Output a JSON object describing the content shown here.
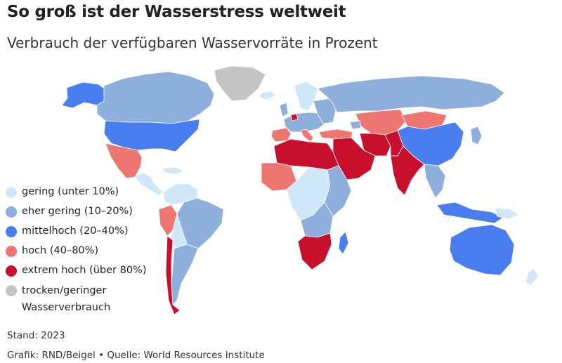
{
  "header": {
    "title": "So groß ist der Wasserstress weltweit",
    "subtitle": "Verbrauch der verfügbaren Wasservorräte in Prozent"
  },
  "legend": {
    "items": [
      {
        "label": "gering (unter 10%)",
        "color": "#cfe7f9"
      },
      {
        "label": "eher gering (10–20%)",
        "color": "#8eaedc"
      },
      {
        "label": "mittelhoch (20–40%)",
        "color": "#4a7ef0"
      },
      {
        "label": "hoch (40–80%)",
        "color": "#ee7670"
      },
      {
        "label": "extrem hoch (über 80%)",
        "color": "#c8102e"
      },
      {
        "label": "trocken/geringer Wasserverbrauch",
        "color": "#c4c4c4"
      }
    ]
  },
  "map": {
    "regions": [
      {
        "name": "Alaska",
        "category": "mittelhoch"
      },
      {
        "name": "Kanada",
        "category": "eher gering"
      },
      {
        "name": "Grönland",
        "category": "trocken/geringer Wasserverbrauch"
      },
      {
        "name": "USA",
        "category": "mittelhoch"
      },
      {
        "name": "Mexiko",
        "category": "hoch"
      },
      {
        "name": "Mittelamerika",
        "category": "gering"
      },
      {
        "name": "Südamerika Nord",
        "category": "gering"
      },
      {
        "name": "Brasilien",
        "category": "eher gering"
      },
      {
        "name": "Peru",
        "category": "hoch"
      },
      {
        "name": "Chile",
        "category": "extrem hoch"
      },
      {
        "name": "Argentinien",
        "category": "eher gering"
      },
      {
        "name": "Nordeuropa",
        "category": "gering"
      },
      {
        "name": "Europa",
        "category": "eher gering"
      },
      {
        "name": "Belgien",
        "category": "extrem hoch"
      },
      {
        "name": "Südeuropa",
        "category": "hoch"
      },
      {
        "name": "Russland",
        "category": "eher gering"
      },
      {
        "name": "Nordafrika",
        "category": "extrem hoch"
      },
      {
        "name": "Westafrika",
        "category": "hoch"
      },
      {
        "name": "Zentralafrika",
        "category": "gering"
      },
      {
        "name": "Ostafrika",
        "category": "eher gering"
      },
      {
        "name": "Südliches Afrika",
        "category": "extrem hoch"
      },
      {
        "name": "Arabische Halbinsel",
        "category": "extrem hoch"
      },
      {
        "name": "Zentralasien",
        "category": "hoch"
      },
      {
        "name": "Mongolei",
        "category": "hoch"
      },
      {
        "name": "China",
        "category": "mittelhoch"
      },
      {
        "name": "Indien",
        "category": "extrem hoch"
      },
      {
        "name": "Südostasien",
        "category": "eher gering"
      },
      {
        "name": "Indonesien",
        "category": "mittelhoch"
      },
      {
        "name": "Australien",
        "category": "mittelhoch"
      },
      {
        "name": "Neuseeland",
        "category": "gering"
      }
    ]
  },
  "footer": {
    "date": "Stand: 2023",
    "credit": "Grafik: RND/Beigel • Quelle: World Resources Institute"
  }
}
